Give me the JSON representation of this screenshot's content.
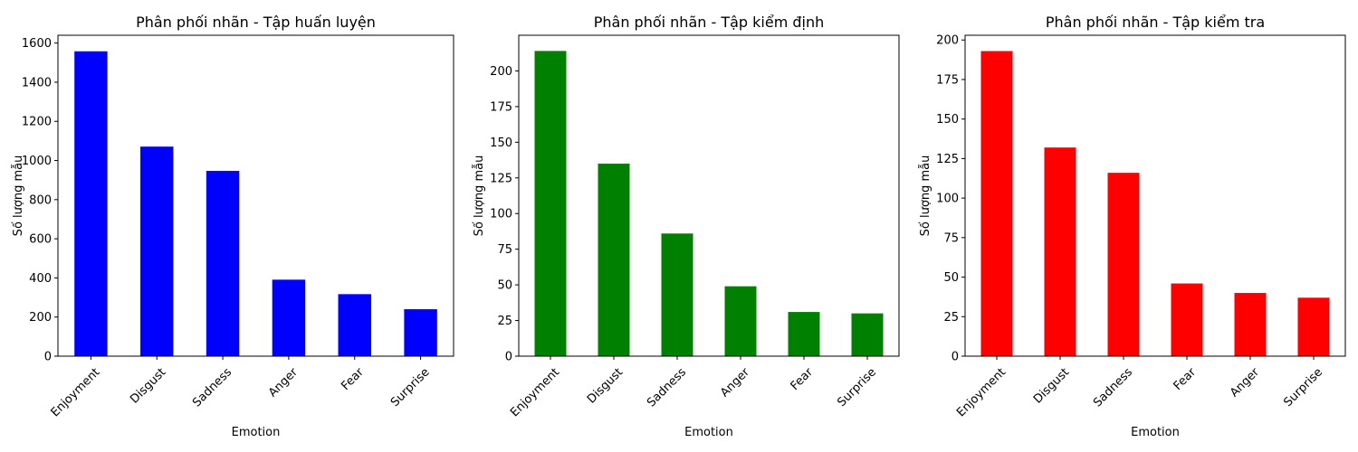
{
  "chart_data": [
    {
      "type": "bar",
      "title": "Phân phối nhãn - Tập huấn luyện",
      "xlabel": "Emotion",
      "ylabel": "Số lượng mẫu",
      "categories": [
        "Enjoyment",
        "Disgust",
        "Sadness",
        "Anger",
        "Fear",
        "Surprise"
      ],
      "values": [
        1558,
        1071,
        947,
        391,
        317,
        240
      ],
      "ylim": [
        0,
        1640
      ],
      "yticks": [
        0,
        200,
        400,
        600,
        800,
        1000,
        1200,
        1400,
        1600
      ],
      "color": "#0000ff",
      "grid": false
    },
    {
      "type": "bar",
      "title": "Phân phối nhãn - Tập kiểm định",
      "xlabel": "Emotion",
      "ylabel": "Số lượng mẫu",
      "categories": [
        "Enjoyment",
        "Disgust",
        "Sadness",
        "Anger",
        "Fear",
        "Surprise"
      ],
      "values": [
        214,
        135,
        86,
        49,
        31,
        30
      ],
      "ylim": [
        0,
        225
      ],
      "yticks": [
        0,
        25,
        50,
        75,
        100,
        125,
        150,
        175,
        200
      ],
      "color": "#008000",
      "grid": false
    },
    {
      "type": "bar",
      "title": "Phân phối nhãn - Tập kiểm tra",
      "xlabel": "Emotion",
      "ylabel": "Số lượng mẫu",
      "categories": [
        "Enjoyment",
        "Disgust",
        "Sadness",
        "Fear",
        "Anger",
        "Surprise"
      ],
      "values": [
        193,
        132,
        116,
        46,
        40,
        37
      ],
      "ylim": [
        0,
        203
      ],
      "yticks": [
        0,
        25,
        50,
        75,
        100,
        125,
        150,
        175,
        200
      ],
      "color": "#ff0000",
      "grid": false
    }
  ]
}
